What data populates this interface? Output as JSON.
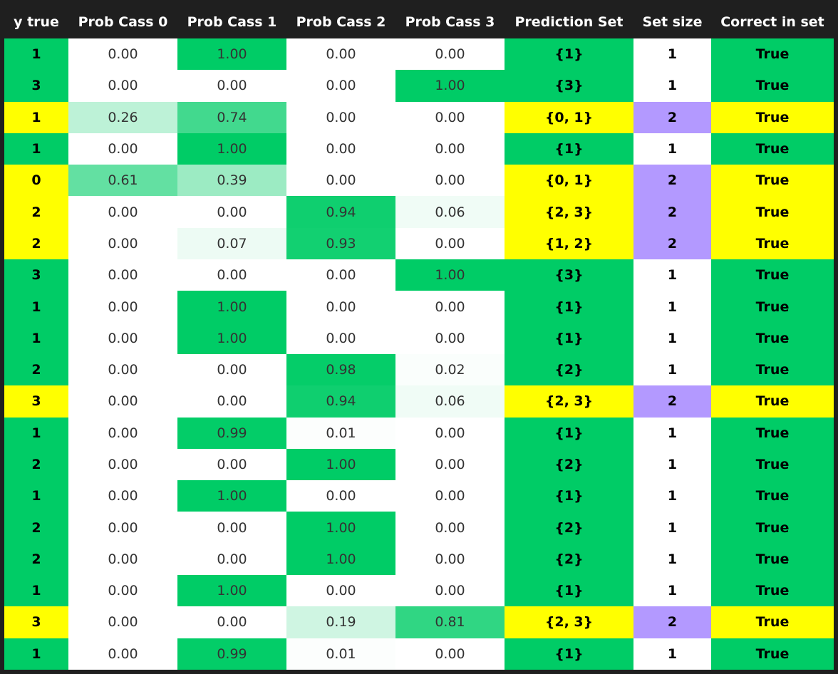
{
  "table": {
    "headers": [
      "y true",
      "Prob Cass 0",
      "Prob Cass 1",
      "Prob Cass 2",
      "Prob Cass 3",
      "Prediction Set",
      "Set size",
      "Correct in set"
    ],
    "colors": {
      "single": "#00cc66",
      "multi": "#ffff00",
      "size2": "#b399ff",
      "plain": "#ffffff",
      "prob_high": "#00cc66",
      "prob_low": "#ffffff"
    },
    "rows": [
      {
        "y_true": "1",
        "probs": [
          "0.00",
          "1.00",
          "0.00",
          "0.00"
        ],
        "prediction_set": "{1}",
        "set_size": "1",
        "correct": "True"
      },
      {
        "y_true": "3",
        "probs": [
          "0.00",
          "0.00",
          "0.00",
          "1.00"
        ],
        "prediction_set": "{3}",
        "set_size": "1",
        "correct": "True"
      },
      {
        "y_true": "1",
        "probs": [
          "0.26",
          "0.74",
          "0.00",
          "0.00"
        ],
        "prediction_set": "{0, 1}",
        "set_size": "2",
        "correct": "True"
      },
      {
        "y_true": "1",
        "probs": [
          "0.00",
          "1.00",
          "0.00",
          "0.00"
        ],
        "prediction_set": "{1}",
        "set_size": "1",
        "correct": "True"
      },
      {
        "y_true": "0",
        "probs": [
          "0.61",
          "0.39",
          "0.00",
          "0.00"
        ],
        "prediction_set": "{0, 1}",
        "set_size": "2",
        "correct": "True"
      },
      {
        "y_true": "2",
        "probs": [
          "0.00",
          "0.00",
          "0.94",
          "0.06"
        ],
        "prediction_set": "{2, 3}",
        "set_size": "2",
        "correct": "True"
      },
      {
        "y_true": "2",
        "probs": [
          "0.00",
          "0.07",
          "0.93",
          "0.00"
        ],
        "prediction_set": "{1, 2}",
        "set_size": "2",
        "correct": "True"
      },
      {
        "y_true": "3",
        "probs": [
          "0.00",
          "0.00",
          "0.00",
          "1.00"
        ],
        "prediction_set": "{3}",
        "set_size": "1",
        "correct": "True"
      },
      {
        "y_true": "1",
        "probs": [
          "0.00",
          "1.00",
          "0.00",
          "0.00"
        ],
        "prediction_set": "{1}",
        "set_size": "1",
        "correct": "True"
      },
      {
        "y_true": "1",
        "probs": [
          "0.00",
          "1.00",
          "0.00",
          "0.00"
        ],
        "prediction_set": "{1}",
        "set_size": "1",
        "correct": "True"
      },
      {
        "y_true": "2",
        "probs": [
          "0.00",
          "0.00",
          "0.98",
          "0.02"
        ],
        "prediction_set": "{2}",
        "set_size": "1",
        "correct": "True"
      },
      {
        "y_true": "3",
        "probs": [
          "0.00",
          "0.00",
          "0.94",
          "0.06"
        ],
        "prediction_set": "{2, 3}",
        "set_size": "2",
        "correct": "True"
      },
      {
        "y_true": "1",
        "probs": [
          "0.00",
          "0.99",
          "0.01",
          "0.00"
        ],
        "prediction_set": "{1}",
        "set_size": "1",
        "correct": "True"
      },
      {
        "y_true": "2",
        "probs": [
          "0.00",
          "0.00",
          "1.00",
          "0.00"
        ],
        "prediction_set": "{2}",
        "set_size": "1",
        "correct": "True"
      },
      {
        "y_true": "1",
        "probs": [
          "0.00",
          "1.00",
          "0.00",
          "0.00"
        ],
        "prediction_set": "{1}",
        "set_size": "1",
        "correct": "True"
      },
      {
        "y_true": "2",
        "probs": [
          "0.00",
          "0.00",
          "1.00",
          "0.00"
        ],
        "prediction_set": "{2}",
        "set_size": "1",
        "correct": "True"
      },
      {
        "y_true": "2",
        "probs": [
          "0.00",
          "0.00",
          "1.00",
          "0.00"
        ],
        "prediction_set": "{2}",
        "set_size": "1",
        "correct": "True"
      },
      {
        "y_true": "1",
        "probs": [
          "0.00",
          "1.00",
          "0.00",
          "0.00"
        ],
        "prediction_set": "{1}",
        "set_size": "1",
        "correct": "True"
      },
      {
        "y_true": "3",
        "probs": [
          "0.00",
          "0.00",
          "0.19",
          "0.81"
        ],
        "prediction_set": "{2, 3}",
        "set_size": "2",
        "correct": "True"
      },
      {
        "y_true": "1",
        "probs": [
          "0.00",
          "0.99",
          "0.01",
          "0.00"
        ],
        "prediction_set": "{1}",
        "set_size": "1",
        "correct": "True"
      }
    ]
  }
}
